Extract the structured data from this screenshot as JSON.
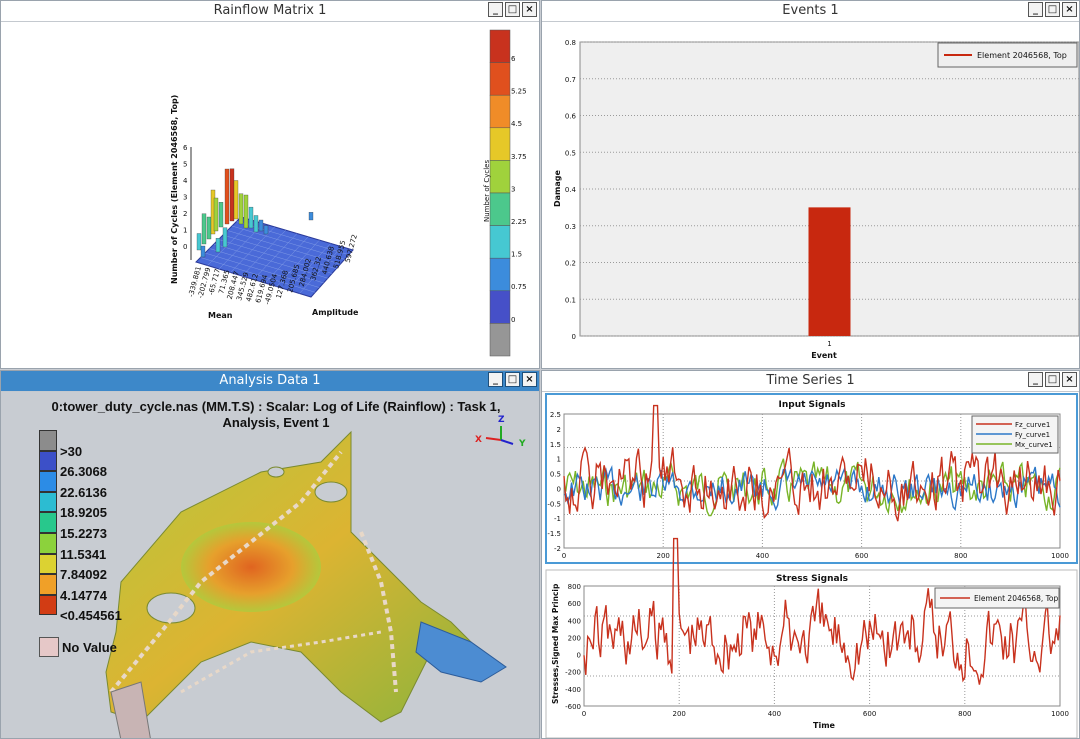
{
  "windows": {
    "rainflow": {
      "title": "Rainflow Matrix 1"
    },
    "events": {
      "title": "Events 1"
    },
    "analysis": {
      "title": "Analysis Data 1"
    },
    "timeseries": {
      "title": "Time Series 1"
    }
  },
  "window_buttons": {
    "minimize": "_",
    "maximize": "□",
    "close": "×"
  },
  "rainflow": {
    "z_axis_label": "Number of Cycles (Element 2046568, Top)",
    "z_ticks": [
      "6",
      "5",
      "4",
      "3",
      "2",
      "1",
      "0"
    ],
    "x_axis_label": "Mean",
    "y_axis_label": "Amplitude",
    "mean_ticks": [
      "-339.881",
      "-202.799",
      "-65.717",
      "71.365",
      "208.447",
      "345.529",
      "482.612",
      "619.694"
    ],
    "amp_ticks": [
      "-49.0504",
      "127.368",
      "205.685",
      "284.002",
      "362.32",
      "440.638",
      "518.955",
      "597.272"
    ],
    "colorbar_label": "Number of Cycles",
    "colorbar_ticks": [
      "6",
      "5.25",
      "4.5",
      "3.75",
      "3",
      "2.25",
      "1.5",
      "0.75",
      "0"
    ],
    "colorbar_colors": [
      "#c8321e",
      "#e0501e",
      "#f08c28",
      "#e6c828",
      "#a0d23c",
      "#4cc88c",
      "#46c8d2",
      "#3c8cdc",
      "#4650c8",
      "#969696"
    ]
  },
  "events_chart": {
    "chart_data": {
      "type": "bar",
      "categories": [
        "1"
      ],
      "series": [
        {
          "name": "Element 2046568, Top",
          "values": [
            0.35
          ]
        }
      ],
      "xlabel": "Event",
      "ylabel": "Damage",
      "ylim": [
        0,
        0.8
      ],
      "yticks": [
        "0",
        "0.1",
        "0.2",
        "0.3",
        "0.4",
        "0.5",
        "0.6",
        "0.7",
        "0.8"
      ],
      "legend": "top-right",
      "color": "#c8280f"
    }
  },
  "analysis": {
    "header": "0:tower_duty_cycle.nas (MM.T.S) : Scalar: Log of Life (Rainflow)  : Task 1, Analysis, Event 1",
    "legend": [
      {
        "label": ">30",
        "color": "#8c8c8c"
      },
      {
        "label": "26.3068",
        "color": "#3c50c8"
      },
      {
        "label": "22.6136",
        "color": "#2c8ce6"
      },
      {
        "label": "18.9205",
        "color": "#2cbcd2"
      },
      {
        "label": "15.2273",
        "color": "#28c88c"
      },
      {
        "label": "11.5341",
        "color": "#8cd23c"
      },
      {
        "label": "7.84092",
        "color": "#dcd232"
      },
      {
        "label": "4.14774",
        "color": "#f0a028"
      },
      {
        "label": "<0.454561",
        "color": "#d23c14"
      }
    ],
    "no_value": {
      "label": "No Value",
      "color": "#e6c8c8"
    },
    "axes": {
      "x": "X",
      "y": "Y",
      "z": "Z"
    }
  },
  "timeseries": {
    "input": {
      "title": "Input Signals",
      "yticks": [
        "2.5",
        "2",
        "1.5",
        "1",
        "0.5",
        "0",
        "-0.5",
        "-1",
        "-1.5",
        "-2"
      ],
      "xticks": [
        "0",
        "200",
        "400",
        "600",
        "800",
        "1000"
      ],
      "legend": [
        {
          "name": "Fz_curve1",
          "color": "#c8321e"
        },
        {
          "name": "Fy_curve1",
          "color": "#2c78c8"
        },
        {
          "name": "Mx_curve1",
          "color": "#78b428"
        }
      ]
    },
    "stress": {
      "title": "Stress Signals",
      "ylabel": "Stresses,Signed Max Princip",
      "xlabel": "Time",
      "yticks": [
        "800",
        "600",
        "400",
        "200",
        "0",
        "-200",
        "-400",
        "-600"
      ],
      "xticks": [
        "0",
        "200",
        "400",
        "600",
        "800",
        "1000"
      ],
      "legend": [
        {
          "name": "Element 2046568, Top",
          "color": "#c8321e"
        }
      ]
    }
  }
}
